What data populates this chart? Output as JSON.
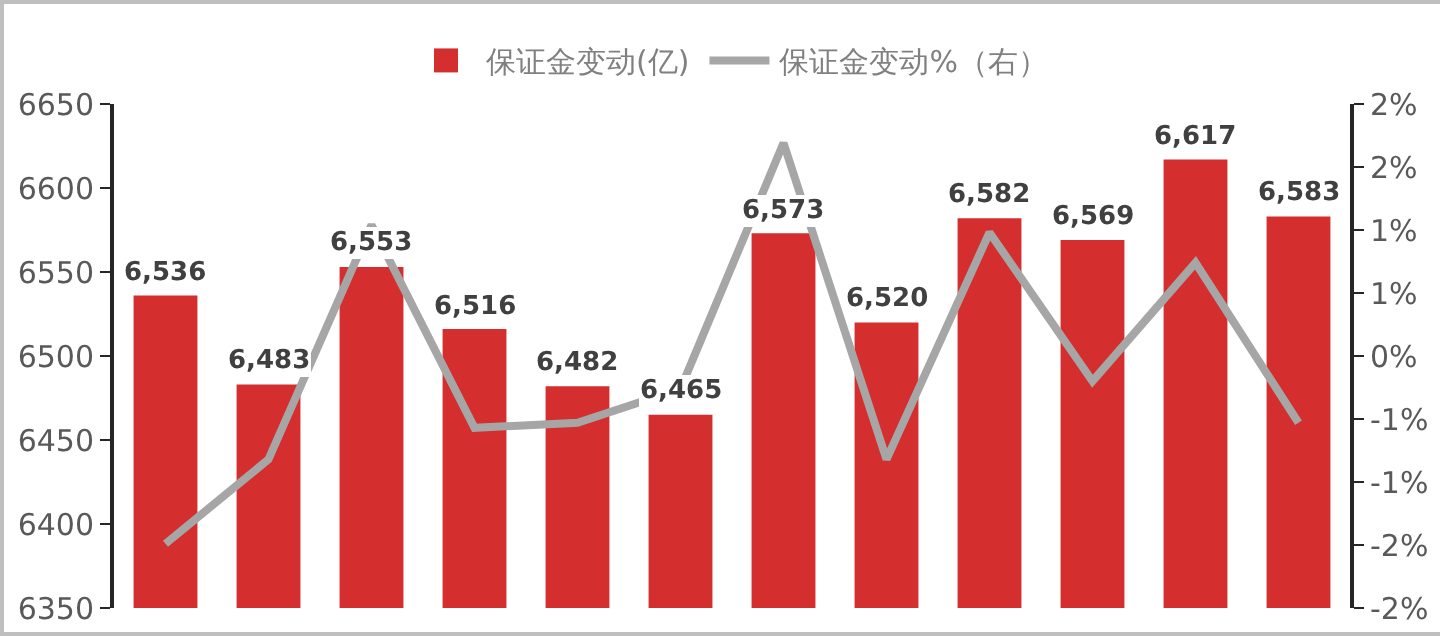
{
  "chart_data": {
    "type": "bar",
    "categories": [
      null,
      null,
      null,
      null,
      null,
      null,
      null,
      null,
      null,
      null,
      null,
      null
    ],
    "series": [
      {
        "name": "保证金变动(亿)",
        "color": "#d42e2e",
        "values": [
          6536,
          6483,
          6553,
          6516,
          6482,
          6465,
          6573,
          6520,
          6582,
          6569,
          6617,
          6583
        ],
        "value_labels": [
          "6,536",
          "6,483",
          "6,553",
          "6,516",
          "6,482",
          "6,465",
          "6,573",
          "6,520",
          "6,582",
          "6,569",
          "6,617",
          "6,583"
        ]
      },
      {
        "name": "保证金变动%（右）",
        "type": "line",
        "axis": "y2",
        "color": "#a6a6a6",
        "marker": "none",
        "values": [
          -1.49,
          -0.82,
          1.04,
          -0.57,
          -0.53,
          -0.26,
          1.69,
          -0.82,
          0.98,
          -0.2,
          0.74,
          -0.53
        ]
      }
    ],
    "ylim": [
      6350,
      6650
    ],
    "yticks": [
      6350,
      6400,
      6450,
      6500,
      6550,
      6600,
      6650
    ],
    "y2lim": [
      -2,
      2
    ],
    "y2ticks": [
      {
        "value": -2,
        "label": "-2%"
      },
      {
        "value": -1.5,
        "label": "-2%"
      },
      {
        "value": -1,
        "label": "-1%"
      },
      {
        "value": -0.5,
        "label": "-1%"
      },
      {
        "value": 0,
        "label": "0%"
      },
      {
        "value": 0.5,
        "label": "1%"
      },
      {
        "value": 1,
        "label": "1%"
      },
      {
        "value": 1.5,
        "label": "2%"
      },
      {
        "value": 2,
        "label": "2%"
      }
    ],
    "grid": false,
    "legend": "top"
  }
}
